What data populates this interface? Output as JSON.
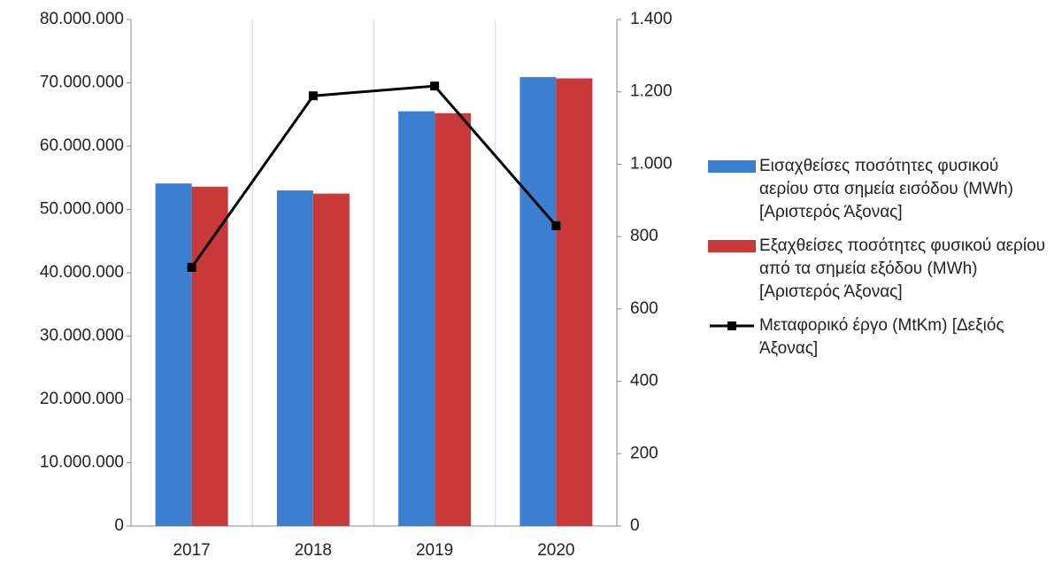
{
  "chart_data": {
    "type": "bar",
    "categories": [
      "2017",
      "2018",
      "2019",
      "2020"
    ],
    "series": [
      {
        "name": "Εισαχθείσες ποσότητες φυσικού αερίου στα σημεία εισόδου (MWh) [Αριστερός Άξονας]",
        "color": "#3a7fd0",
        "values": [
          54100000,
          53000000,
          65500000,
          70900000
        ]
      },
      {
        "name": "Εξαχθείσες ποσότητες φυσικού αερίου από τα σημεία εξόδου (MWh)  [Αριστερός Άξονας]",
        "color": "#c83a3a",
        "values": [
          53600000,
          52500000,
          65200000,
          70700000
        ]
      },
      {
        "name": "Μεταφορικό έργο (MtKm) [Δεξιός Άξονας]",
        "color": "#000000",
        "type": "line",
        "axis": "y2",
        "values": [
          715,
          1189,
          1216,
          830
        ]
      }
    ],
    "ylim": [
      0,
      80000000
    ],
    "yticks": [
      0,
      {
        "value": 10000000,
        "label": "10.000.000"
      },
      {
        "value": 20000000,
        "label": "20.000.000"
      },
      {
        "value": 30000000,
        "label": "30.000.000"
      },
      {
        "value": 40000000,
        "label": "40.000.000"
      },
      {
        "value": 50000000,
        "label": "50.000.000"
      },
      {
        "value": 60000000,
        "label": "60.000.000"
      },
      {
        "value": 70000000,
        "label": "70.000.000"
      },
      {
        "value": 80000000,
        "label": "80.000.000"
      }
    ],
    "y2lim": [
      0,
      1400
    ],
    "y2ticks": [
      0,
      200,
      400,
      600,
      800,
      {
        "value": 1000,
        "label": "1.000"
      },
      {
        "value": 1200,
        "label": "1.200"
      },
      {
        "value": 1400,
        "label": "1.400"
      }
    ],
    "legend": "right"
  }
}
